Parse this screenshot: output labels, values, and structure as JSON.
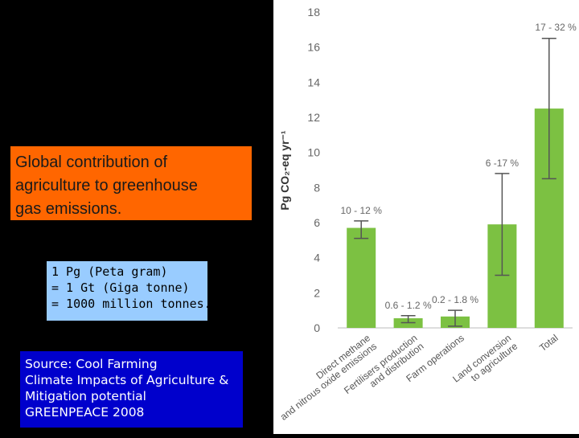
{
  "orange_box": {
    "lines": [
      "Global contribution of",
      "agriculture to greenhouse",
      "gas emissions."
    ]
  },
  "unit_box": {
    "lines": [
      "1 Pg (Peta gram)",
      "= 1 Gt (Giga tonne)",
      "= 1000 million tonnes."
    ]
  },
  "source_box": {
    "lines": [
      "Source: Cool Farming",
      "Climate Impacts of Agriculture &",
      "Mitigation potential",
      "GREENPEACE 2008"
    ]
  },
  "chart_data": {
    "type": "bar",
    "ylabel": "Pg CO₂-eq yr⁻¹",
    "ylim": [
      0,
      18
    ],
    "yticks": [
      0,
      2,
      4,
      6,
      8,
      10,
      12,
      14,
      16,
      18
    ],
    "bar_color": "#7cc142",
    "categories": [
      [
        "Direct methane",
        "and nitrous oxide emissions"
      ],
      [
        "Fertilisers production",
        "and distribution"
      ],
      [
        "Farm operations"
      ],
      [
        "Land conversion",
        "to agriculture"
      ],
      [
        "Total"
      ]
    ],
    "values": [
      5.7,
      0.55,
      0.65,
      5.9,
      12.5
    ],
    "error_low": [
      5.1,
      0.3,
      0.1,
      3.0,
      8.5
    ],
    "error_high": [
      6.1,
      0.7,
      1.0,
      8.8,
      16.5
    ],
    "data_labels": [
      "10 - 12 %",
      "0.6 - 1.2 %",
      "0.2 - 1.8 %",
      "6 -17 %",
      "17 - 32 %"
    ]
  }
}
